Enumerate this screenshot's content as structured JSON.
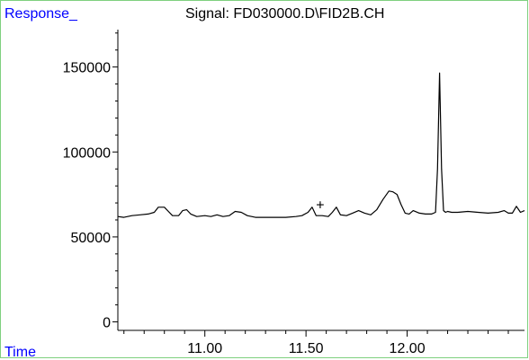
{
  "chart_data": {
    "type": "line",
    "title": "Signal: FD030000.D\\FID2B.CH",
    "ylabel": "Response_",
    "xlabel": "Time",
    "xlim": [
      10.57,
      12.58
    ],
    "ylim": [
      -5000,
      172000
    ],
    "x_ticks": [
      11.0,
      11.5,
      12.0
    ],
    "x_tick_labels": [
      "11.00",
      "11.50",
      "12.00"
    ],
    "y_ticks": [
      0,
      50000,
      100000,
      150000
    ],
    "y_tick_labels": [
      "0",
      "50000",
      "100000",
      "150000"
    ],
    "series": [
      {
        "color": "#000000",
        "x": [
          10.57,
          10.6,
          10.64,
          10.68,
          10.72,
          10.75,
          10.77,
          10.8,
          10.82,
          10.84,
          10.87,
          10.89,
          10.91,
          10.93,
          10.96,
          11.0,
          11.03,
          11.06,
          11.09,
          11.12,
          11.15,
          11.18,
          11.21,
          11.25,
          11.3,
          11.35,
          11.4,
          11.45,
          11.48,
          11.51,
          11.53,
          11.55,
          11.58,
          11.61,
          11.63,
          11.65,
          11.67,
          11.7,
          11.73,
          11.76,
          11.79,
          11.82,
          11.85,
          11.88,
          11.91,
          11.93,
          11.95,
          11.97,
          11.99,
          12.01,
          12.03,
          12.06,
          12.09,
          12.12,
          12.14,
          12.15,
          12.16,
          12.17,
          12.18,
          12.19,
          12.2,
          12.22,
          12.25,
          12.3,
          12.35,
          12.4,
          12.45,
          12.48,
          12.5,
          12.52,
          12.54,
          12.56,
          12.58
        ],
        "y": [
          62000,
          61500,
          62500,
          63000,
          63500,
          64500,
          67500,
          67500,
          65000,
          62500,
          62500,
          65500,
          66000,
          63500,
          62000,
          62500,
          62000,
          63000,
          62000,
          62500,
          65000,
          64500,
          62500,
          61500,
          61500,
          61500,
          61500,
          62000,
          62500,
          64500,
          67500,
          62500,
          62500,
          62000,
          64500,
          67500,
          63000,
          62500,
          64000,
          65500,
          64000,
          63000,
          66000,
          72000,
          77000,
          76500,
          75000,
          69000,
          64000,
          63500,
          65500,
          64000,
          63500,
          63500,
          64500,
          90000,
          146500,
          90000,
          65500,
          64500,
          65000,
          64500,
          64500,
          65000,
          64500,
          64000,
          64500,
          65500,
          64000,
          64000,
          68000,
          64500,
          65500
        ]
      }
    ],
    "annotations": [
      {
        "text": "+",
        "x": 11.57,
        "y": 66000
      }
    ],
    "grid": false,
    "legend": "none"
  }
}
